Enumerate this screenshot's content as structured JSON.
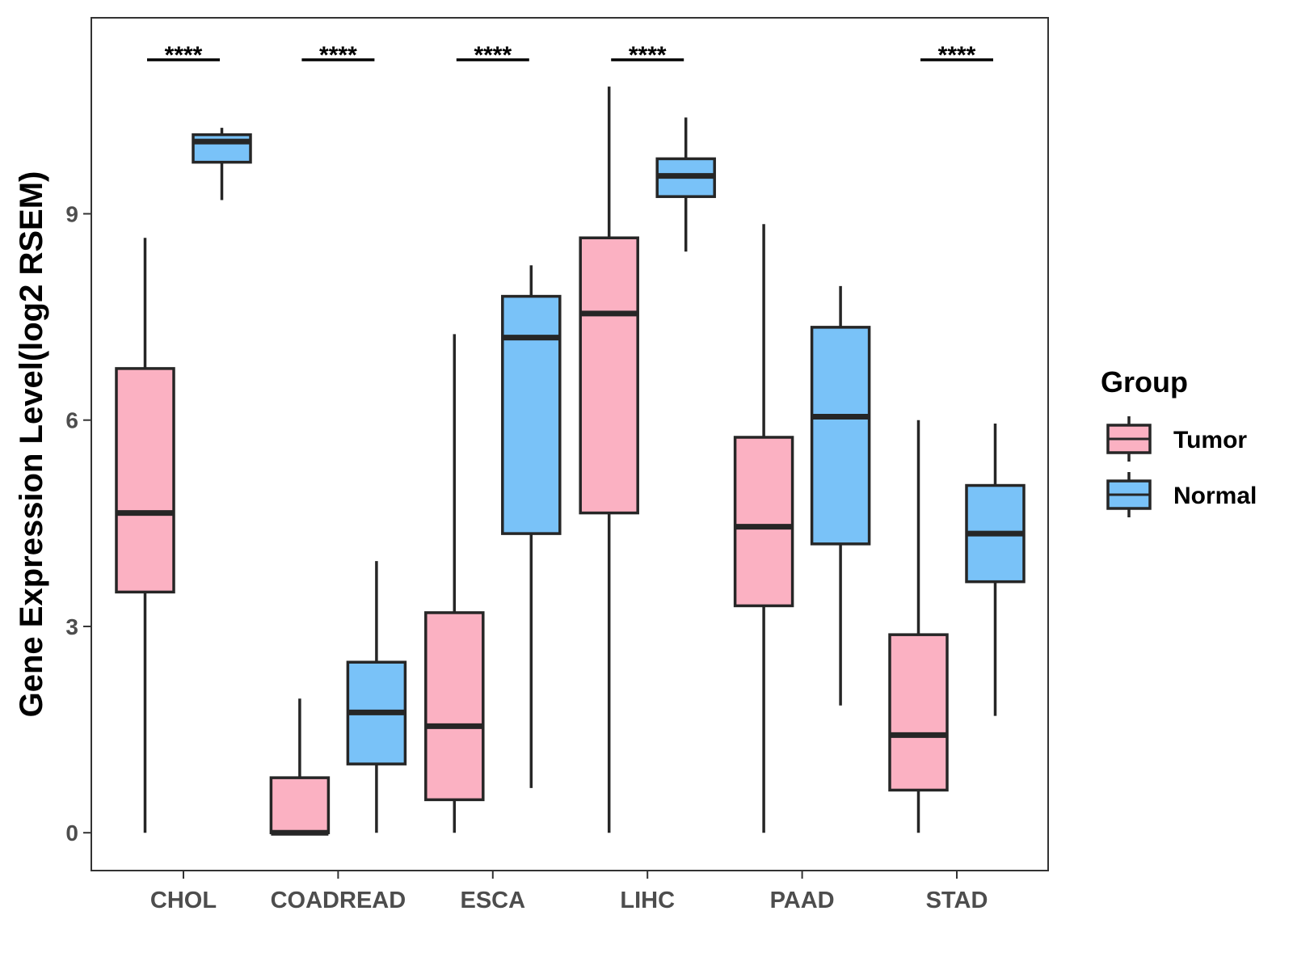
{
  "chart_data": {
    "type": "boxplot",
    "title": "",
    "xlabel": "",
    "ylabel": "Gene Expression Level(log2 RSEM)",
    "ylim": [
      -0.55,
      11.85
    ],
    "yticks": [
      0,
      3,
      6,
      9
    ],
    "grid": false,
    "legend": {
      "title": "Group",
      "position": "right",
      "entries": [
        {
          "name": "Tumor",
          "color": "#FBB1C2"
        },
        {
          "name": "Normal",
          "color": "#79C2F8"
        }
      ]
    },
    "categories": [
      "CHOL",
      "COADREAD",
      "ESCA",
      "LIHC",
      "PAAD",
      "STAD"
    ],
    "series": [
      {
        "name": "Tumor",
        "color": "#FBB1C2",
        "boxes": [
          {
            "min": 0.0,
            "q1": 3.5,
            "median": 4.65,
            "q3": 6.75,
            "max": 8.65
          },
          {
            "min": 0.0,
            "q1": 0.0,
            "median": 0.0,
            "q3": 0.8,
            "max": 1.95
          },
          {
            "min": 0.0,
            "q1": 0.48,
            "median": 1.55,
            "q3": 3.2,
            "max": 7.25
          },
          {
            "min": 0.0,
            "q1": 4.65,
            "median": 7.55,
            "q3": 8.65,
            "max": 10.85
          },
          {
            "min": 0.0,
            "q1": 3.3,
            "median": 4.45,
            "q3": 5.75,
            "max": 8.85
          },
          {
            "min": 0.0,
            "q1": 0.62,
            "median": 1.42,
            "q3": 2.88,
            "max": 6.0
          }
        ]
      },
      {
        "name": "Normal",
        "color": "#79C2F8",
        "boxes": [
          {
            "min": 9.2,
            "q1": 9.75,
            "median": 10.05,
            "q3": 10.15,
            "max": 10.25
          },
          {
            "min": 0.0,
            "q1": 1.0,
            "median": 1.75,
            "q3": 2.48,
            "max": 3.95
          },
          {
            "min": 0.65,
            "q1": 4.35,
            "median": 7.2,
            "q3": 7.8,
            "max": 8.25
          },
          {
            "min": 8.45,
            "q1": 9.25,
            "median": 9.55,
            "q3": 9.8,
            "max": 10.4
          },
          {
            "min": 1.85,
            "q1": 4.2,
            "median": 6.05,
            "q3": 7.35,
            "max": 7.95
          },
          {
            "min": 1.7,
            "q1": 3.65,
            "median": 4.35,
            "q3": 5.05,
            "max": 5.95
          }
        ]
      }
    ],
    "significance": [
      {
        "category": "CHOL",
        "label": "****"
      },
      {
        "category": "COADREAD",
        "label": "****"
      },
      {
        "category": "ESCA",
        "label": "****"
      },
      {
        "category": "LIHC",
        "label": "****"
      },
      {
        "category": "PAAD",
        "label": ""
      },
      {
        "category": "STAD",
        "label": "****"
      }
    ]
  }
}
